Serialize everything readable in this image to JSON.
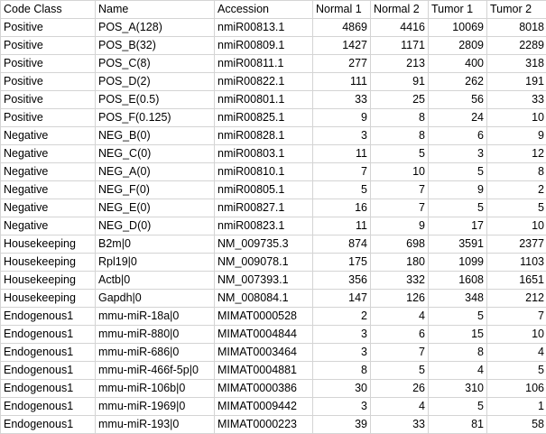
{
  "sheet": {
    "headers": [
      "Code Class",
      "Name",
      "Accession",
      "Normal 1",
      "Normal 2",
      "Tumor 1",
      "Tumor 2"
    ],
    "rows": [
      [
        "Positive",
        "POS_A(128)",
        "nmiR00813.1",
        "4869",
        "4416",
        "10069",
        "8018"
      ],
      [
        "Positive",
        "POS_B(32)",
        "nmiR00809.1",
        "1427",
        "1171",
        "2809",
        "2289"
      ],
      [
        "Positive",
        "POS_C(8)",
        "nmiR00811.1",
        "277",
        "213",
        "400",
        "318"
      ],
      [
        "Positive",
        "POS_D(2)",
        "nmiR00822.1",
        "111",
        "91",
        "262",
        "191"
      ],
      [
        "Positive",
        "POS_E(0.5)",
        "nmiR00801.1",
        "33",
        "25",
        "56",
        "33"
      ],
      [
        "Positive",
        "POS_F(0.125)",
        "nmiR00825.1",
        "9",
        "8",
        "24",
        "10"
      ],
      [
        "Negative",
        "NEG_B(0)",
        "nmiR00828.1",
        "3",
        "8",
        "6",
        "9"
      ],
      [
        "Negative",
        "NEG_C(0)",
        "nmiR00803.1",
        "11",
        "5",
        "3",
        "12"
      ],
      [
        "Negative",
        "NEG_A(0)",
        "nmiR00810.1",
        "7",
        "10",
        "5",
        "8"
      ],
      [
        "Negative",
        "NEG_F(0)",
        "nmiR00805.1",
        "5",
        "7",
        "9",
        "2"
      ],
      [
        "Negative",
        "NEG_E(0)",
        "nmiR00827.1",
        "16",
        "7",
        "5",
        "5"
      ],
      [
        "Negative",
        "NEG_D(0)",
        "nmiR00823.1",
        "11",
        "9",
        "17",
        "10"
      ],
      [
        "Housekeeping",
        "B2m|0",
        "NM_009735.3",
        "874",
        "698",
        "3591",
        "2377"
      ],
      [
        "Housekeeping",
        "Rpl19|0",
        "NM_009078.1",
        "175",
        "180",
        "1099",
        "1103"
      ],
      [
        "Housekeeping",
        "Actb|0",
        "NM_007393.1",
        "356",
        "332",
        "1608",
        "1651"
      ],
      [
        "Housekeeping",
        "Gapdh|0",
        "NM_008084.1",
        "147",
        "126",
        "348",
        "212"
      ],
      [
        "Endogenous1",
        "mmu-miR-18a|0",
        "MIMAT0000528",
        "2",
        "4",
        "5",
        "7"
      ],
      [
        "Endogenous1",
        "mmu-miR-880|0",
        "MIMAT0004844",
        "3",
        "6",
        "15",
        "10"
      ],
      [
        "Endogenous1",
        "mmu-miR-686|0",
        "MIMAT0003464",
        "3",
        "7",
        "8",
        "4"
      ],
      [
        "Endogenous1",
        "mmu-miR-466f-5p|0",
        "MIMAT0004881",
        "8",
        "5",
        "4",
        "5"
      ],
      [
        "Endogenous1",
        "mmu-miR-106b|0",
        "MIMAT0000386",
        "30",
        "26",
        "310",
        "106"
      ],
      [
        "Endogenous1",
        "mmu-miR-1969|0",
        "MIMAT0009442",
        "3",
        "4",
        "5",
        "1"
      ],
      [
        "Endogenous1",
        "mmu-miR-193|0",
        "MIMAT0000223",
        "39",
        "33",
        "81",
        "58"
      ],
      [
        "",
        "",
        "",
        "",
        "",
        "",
        ""
      ]
    ],
    "numeric_columns": [
      3,
      4,
      5,
      6
    ]
  }
}
